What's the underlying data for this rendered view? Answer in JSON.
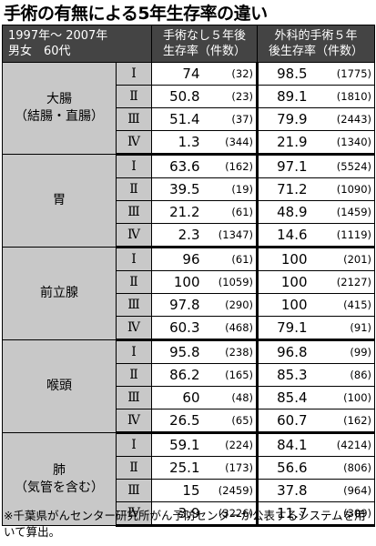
{
  "title": "手術の有無による5年生存率の違い",
  "header": {
    "left_line1": "1997年～ 2007年",
    "left_line2": "男女　60代",
    "col1_line1": "手術なし５年後",
    "col1_line2": "生存率（件数）",
    "col2_line1": "外科的手術５年",
    "col2_line2": "後生存率（件数）"
  },
  "groups": [
    {
      "organ": "大腸",
      "sub": "（結腸・直腸）",
      "rows": [
        {
          "stage": "Ⅰ",
          "v1": "74",
          "c1": "(32)",
          "v2": "98.5",
          "c2": "(1775)"
        },
        {
          "stage": "Ⅱ",
          "v1": "50.8",
          "c1": "(23)",
          "v2": "89.1",
          "c2": "(1810)"
        },
        {
          "stage": "Ⅲ",
          "v1": "51.4",
          "c1": "(37)",
          "v2": "79.9",
          "c2": "(2443)"
        },
        {
          "stage": "Ⅳ",
          "v1": "1.3",
          "c1": "(344)",
          "v2": "21.9",
          "c2": "(1340)"
        }
      ]
    },
    {
      "organ": "胃",
      "sub": "",
      "rows": [
        {
          "stage": "Ⅰ",
          "v1": "63.6",
          "c1": "(162)",
          "v2": "97.1",
          "c2": "(5524)"
        },
        {
          "stage": "Ⅱ",
          "v1": "39.5",
          "c1": "(19)",
          "v2": "71.2",
          "c2": "(1090)"
        },
        {
          "stage": "Ⅲ",
          "v1": "21.2",
          "c1": "(61)",
          "v2": "48.9",
          "c2": "(1459)"
        },
        {
          "stage": "Ⅳ",
          "v1": "2.3",
          "c1": "(1347)",
          "v2": "14.6",
          "c2": "(1119)"
        }
      ]
    },
    {
      "organ": "前立腺",
      "sub": "",
      "rows": [
        {
          "stage": "Ⅰ",
          "v1": "96",
          "c1": "(61)",
          "v2": "100",
          "c2": "(201)"
        },
        {
          "stage": "Ⅱ",
          "v1": "100",
          "c1": "(1059)",
          "v2": "100",
          "c2": "(2127)"
        },
        {
          "stage": "Ⅲ",
          "v1": "97.8",
          "c1": "(290)",
          "v2": "100",
          "c2": "(415)"
        },
        {
          "stage": "Ⅳ",
          "v1": "60.3",
          "c1": "(468)",
          "v2": "79.1",
          "c2": "(91)"
        }
      ]
    },
    {
      "organ": "喉頭",
      "sub": "",
      "rows": [
        {
          "stage": "Ⅰ",
          "v1": "95.8",
          "c1": "(238)",
          "v2": "96.8",
          "c2": "(99)"
        },
        {
          "stage": "Ⅱ",
          "v1": "86.2",
          "c1": "(165)",
          "v2": "85.3",
          "c2": "(86)"
        },
        {
          "stage": "Ⅲ",
          "v1": "60",
          "c1": "(48)",
          "v2": "85.4",
          "c2": "(100)"
        },
        {
          "stage": "Ⅳ",
          "v1": "26.5",
          "c1": "(65)",
          "v2": "60.7",
          "c2": "(162)"
        }
      ]
    },
    {
      "organ": "肺",
      "sub": "（気管を含む）",
      "rows": [
        {
          "stage": "Ⅰ",
          "v1": "59.1",
          "c1": "(224)",
          "v2": "84.1",
          "c2": "(4214)"
        },
        {
          "stage": "Ⅱ",
          "v1": "25.1",
          "c1": "(173)",
          "v2": "56.6",
          "c2": "(806)"
        },
        {
          "stage": "Ⅲ",
          "v1": "15",
          "c1": "(2459)",
          "v2": "37.8",
          "c2": "(964)"
        },
        {
          "stage": "Ⅳ",
          "v1": "3.9",
          "c1": "(3226)",
          "v2": "11.7",
          "c2": "(309)"
        }
      ]
    }
  ],
  "footnote": "※千葉県がんセンター研究所がん予防センターが公表するシステムを用いて算出。"
}
